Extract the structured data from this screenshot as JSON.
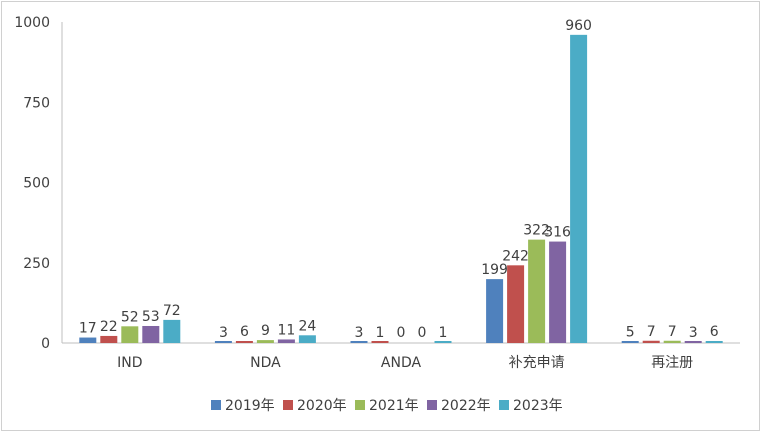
{
  "chart_data": {
    "type": "bar",
    "categories": [
      "IND",
      "NDA",
      "ANDA",
      "补充申请",
      "再注册"
    ],
    "series": [
      {
        "name": "2019年",
        "color": "#4f81bd",
        "values": [
          17,
          3,
          3,
          199,
          5
        ]
      },
      {
        "name": "2020年",
        "color": "#c0504d",
        "values": [
          22,
          6,
          1,
          242,
          7
        ]
      },
      {
        "name": "2021年",
        "color": "#9bbb59",
        "values": [
          52,
          9,
          0,
          322,
          7
        ]
      },
      {
        "name": "2022年",
        "color": "#8064a2",
        "values": [
          53,
          11,
          0,
          316,
          3
        ]
      },
      {
        "name": "2023年",
        "color": "#4bacc6",
        "values": [
          72,
          24,
          1,
          960,
          6
        ]
      }
    ],
    "yticks": [
      "0",
      "250",
      "500",
      "750",
      "1000"
    ],
    "ylim": [
      0,
      1000
    ],
    "title": "",
    "xlabel": "",
    "ylabel": "",
    "grid": false,
    "legend_position": "bottom"
  }
}
